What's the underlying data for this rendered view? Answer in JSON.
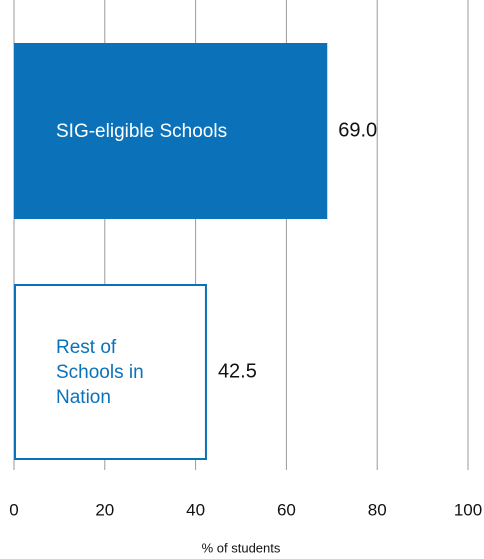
{
  "chart_data": {
    "type": "barh",
    "categories": [
      "SIG-eligible Schools",
      "Rest of Schools in Nation"
    ],
    "values": [
      69.0,
      42.5
    ],
    "value_labels": [
      "69.0",
      "42.5"
    ],
    "colors": [
      "#0b72b9",
      "#ffffff"
    ],
    "edgecolor": "#0b72b9",
    "xlim": [
      0,
      100
    ],
    "xticks": [
      0,
      20,
      40,
      60,
      80,
      100
    ],
    "xlabel": "% of students",
    "grid": true
  }
}
